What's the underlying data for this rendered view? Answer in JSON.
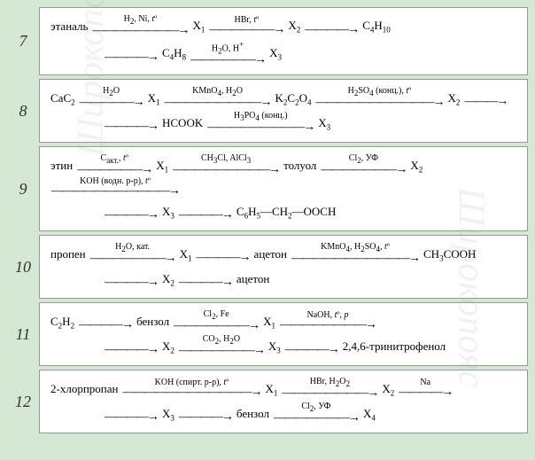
{
  "watermark": "Широкопояс",
  "problems": [
    {
      "n": "7",
      "lines": [
        [
          {
            "t": "term",
            "v": "этаналь"
          },
          {
            "t": "arr",
            "top": "H₂, Ni, tº",
            "len": 9
          },
          {
            "t": "term",
            "v": "X₁"
          },
          {
            "t": "arr",
            "top": "HBr, tº",
            "len": 7
          },
          {
            "t": "term",
            "v": "X₂"
          },
          {
            "t": "arr",
            "top": "",
            "len": 5
          },
          {
            "t": "term",
            "v": "C₄H₁₀"
          }
        ],
        [
          {
            "t": "arr",
            "top": "",
            "len": 5
          },
          {
            "t": "term",
            "v": "C₄H₈"
          },
          {
            "t": "arr",
            "top": "H₂O, H⁺",
            "len": 7
          },
          {
            "t": "term",
            "v": "X₃"
          }
        ]
      ]
    },
    {
      "n": "8",
      "lines": [
        [
          {
            "t": "term",
            "v": "CaC₂"
          },
          {
            "t": "arr",
            "top": "H₂O",
            "len": 6
          },
          {
            "t": "term",
            "v": "X₁"
          },
          {
            "t": "arr",
            "top": "KMnO₄, H₂O",
            "len": 10
          },
          {
            "t": "term",
            "v": "K₂C₂O₄"
          },
          {
            "t": "arr",
            "top": "H₂SO₄ (конц.), tº",
            "len": 12
          },
          {
            "t": "term",
            "v": "X₂"
          },
          {
            "t": "arr",
            "top": "",
            "len": 4
          }
        ],
        [
          {
            "t": "arr",
            "top": "",
            "len": 5
          },
          {
            "t": "term",
            "v": "HCOOK"
          },
          {
            "t": "arr",
            "top": "H₃PO₄ (конц.)",
            "len": 10
          },
          {
            "t": "term",
            "v": "X₃"
          }
        ]
      ]
    },
    {
      "n": "9",
      "lines": [
        [
          {
            "t": "term",
            "v": "этин"
          },
          {
            "t": "arr",
            "top": "Cакт., tº",
            "len": 7
          },
          {
            "t": "term",
            "v": "X₁"
          },
          {
            "t": "arr",
            "top": "CH₃Cl, AlCl₃",
            "len": 10
          },
          {
            "t": "term",
            "v": "толуол"
          },
          {
            "t": "arr",
            "top": "Cl₂, УФ",
            "len": 8
          },
          {
            "t": "term",
            "v": "X₂"
          },
          {
            "t": "arr",
            "top": "KOH (водн. р-р), tº",
            "len": 12
          }
        ],
        [
          {
            "t": "arr",
            "top": "",
            "len": 5
          },
          {
            "t": "term",
            "v": "X₃"
          },
          {
            "t": "arr",
            "top": "",
            "len": 5
          },
          {
            "t": "term",
            "v": "C₆H₅—CH₂—OOCH"
          }
        ]
      ]
    },
    {
      "n": "10",
      "lines": [
        [
          {
            "t": "term",
            "v": "пропен"
          },
          {
            "t": "arr",
            "top": "H₂O, кат.",
            "len": 8
          },
          {
            "t": "term",
            "v": "X₁"
          },
          {
            "t": "arr",
            "top": "",
            "len": 5
          },
          {
            "t": "term",
            "v": "ацетон"
          },
          {
            "t": "arr",
            "top": "KMnO₄, H₂SO₄, tº",
            "len": 12
          },
          {
            "t": "term",
            "v": "CH₃COOH"
          }
        ],
        [
          {
            "t": "arr",
            "top": "",
            "len": 5
          },
          {
            "t": "term",
            "v": "X₂"
          },
          {
            "t": "arr",
            "top": "",
            "len": 5
          },
          {
            "t": "term",
            "v": "ацетон"
          }
        ]
      ]
    },
    {
      "n": "11",
      "lines": [
        [
          {
            "t": "term",
            "v": "C₂H₂"
          },
          {
            "t": "arr",
            "top": "",
            "len": 5
          },
          {
            "t": "term",
            "v": "бензол"
          },
          {
            "t": "arr",
            "top": "Cl₂, Fe",
            "len": 8
          },
          {
            "t": "term",
            "v": "X₁"
          },
          {
            "t": "arr",
            "top": "NaOH, tº, p",
            "len": 9
          }
        ],
        [
          {
            "t": "arr",
            "top": "",
            "len": 5
          },
          {
            "t": "term",
            "v": "X₂"
          },
          {
            "t": "arr",
            "top": "CO₂, H₂O",
            "len": 8
          },
          {
            "t": "term",
            "v": "X₃"
          },
          {
            "t": "arr",
            "top": "",
            "len": 5
          },
          {
            "t": "term",
            "v": "2,4,6-тринитрофенол"
          }
        ]
      ]
    },
    {
      "n": "12",
      "lines": [
        [
          {
            "t": "term",
            "v": "2-хлорпропан"
          },
          {
            "t": "arr",
            "top": "KOH (спирт. р-р), tº",
            "len": 13
          },
          {
            "t": "term",
            "v": "X₁"
          },
          {
            "t": "arr",
            "top": "HBr, H₂O₂",
            "len": 9
          },
          {
            "t": "term",
            "v": "X₂"
          },
          {
            "t": "arr",
            "top": "Na",
            "len": 5
          }
        ],
        [
          {
            "t": "arr",
            "top": "",
            "len": 5
          },
          {
            "t": "term",
            "v": "X₃"
          },
          {
            "t": "arr",
            "top": "",
            "len": 5
          },
          {
            "t": "term",
            "v": "бензол"
          },
          {
            "t": "arr",
            "top": "Cl₂, УФ",
            "len": 8
          },
          {
            "t": "term",
            "v": "X₄"
          }
        ]
      ]
    }
  ]
}
